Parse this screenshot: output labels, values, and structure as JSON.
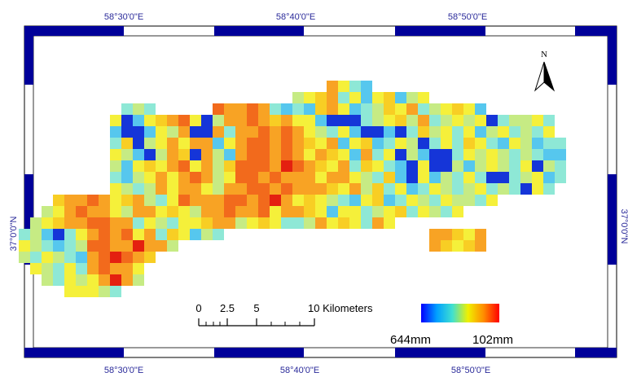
{
  "map": {
    "top_longitudes": [
      "58°30'0\"E",
      "58°40'0\"E",
      "58°50'0\"E"
    ],
    "bottom_longitudes": [
      "58°30'0\"E",
      "58°40'0\"E",
      "58°50'0\"E"
    ],
    "left_latitude": "37°0'0\"N",
    "right_latitude": "37°0'0\"N",
    "north_arrow_label": "N",
    "scale_bar": {
      "ticks": [
        "0",
        "2.5",
        "5",
        "10 Kilometers"
      ]
    },
    "legend": {
      "min_label": "644mm",
      "max_label": "102mm",
      "colors": [
        "#0000ff",
        "#00a0ff",
        "#40e0d0",
        "#f0f000",
        "#ff8c00",
        "#ff0000"
      ]
    },
    "frame_colors": {
      "dark": "#000099",
      "light": "#ffffff"
    },
    "cell_colors": {
      "deep_blue": "#1535d8",
      "light_blue": "#56c7ee",
      "cyan": "#8ee8d6",
      "green": "#c6eb84",
      "yellow": "#f5f03a",
      "gold": "#f8ce24",
      "orange": "#f8a324",
      "red_orange": "#f26a1c",
      "red": "#e42010"
    }
  }
}
